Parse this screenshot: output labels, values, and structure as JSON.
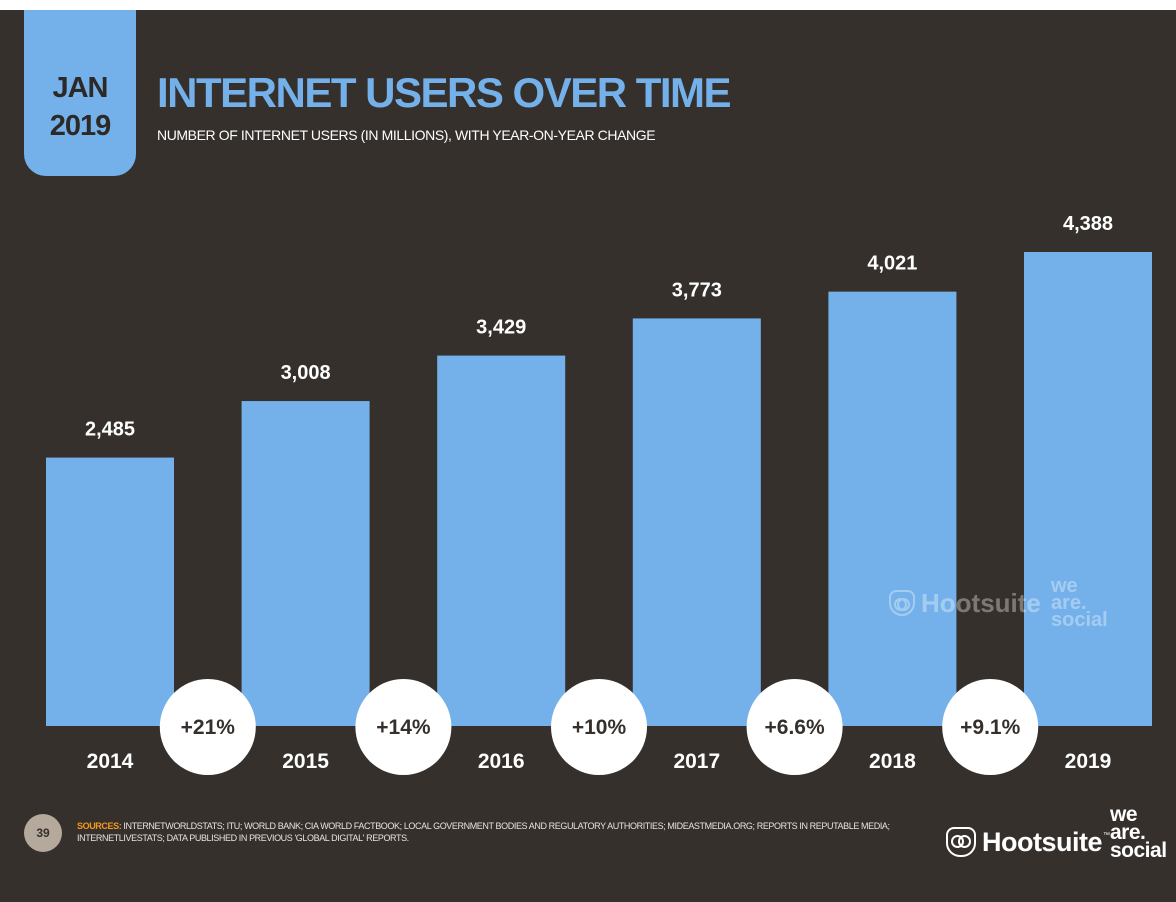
{
  "badge": {
    "month": "JAN",
    "year": "2019"
  },
  "header": {
    "title": "INTERNET USERS OVER TIME",
    "subtitle": "NUMBER OF INTERNET USERS (IN MILLIONS), WITH YEAR-ON-YEAR CHANGE"
  },
  "colors": {
    "background": "#35302c",
    "bar": "#74b1ea",
    "text": "#ffffff",
    "change_circle": "#ffffff",
    "change_text": "#35302c",
    "sources_label": "#f39a1e"
  },
  "chart_data": {
    "type": "bar",
    "title": "INTERNET USERS OVER TIME",
    "subtitle": "NUMBER OF INTERNET USERS (IN MILLIONS), WITH YEAR-ON-YEAR CHANGE",
    "categories": [
      "2014",
      "2015",
      "2016",
      "2017",
      "2018",
      "2019"
    ],
    "values": [
      2485,
      3008,
      3429,
      3773,
      4021,
      4388
    ],
    "value_labels": [
      "2,485",
      "3,008",
      "3,429",
      "3,773",
      "4,021",
      "4,388"
    ],
    "changes": [
      "+21%",
      "+14%",
      "+10%",
      "+6.6%",
      "+9.1%"
    ],
    "xlabel": "",
    "ylabel": "",
    "ylim": [
      0,
      4388
    ],
    "grid": false,
    "legend": "none"
  },
  "footer": {
    "page_number": "39",
    "sources_label": "SOURCES:",
    "sources_text": "INTERNETWORLDSTATS; ITU; WORLD BANK; CIA WORLD FACTBOOK; LOCAL GOVERNMENT BODIES AND REGULATORY AUTHORITIES; MIDEASTMEDIA.ORG; REPORTS IN REPUTABLE MEDIA; INTERNETLIVESTATS; DATA PUBLISHED IN PREVIOUS 'GLOBAL DIGITAL' REPORTS."
  },
  "logos": {
    "hootsuite": "Hootsuite",
    "tm": "™",
    "we_are_social": [
      "we",
      "are.",
      "social"
    ],
    "icon": "owl-icon"
  },
  "watermark": {
    "hootsuite": "Hootsuite",
    "we_are_social": [
      "we",
      "are.",
      "social"
    ]
  }
}
